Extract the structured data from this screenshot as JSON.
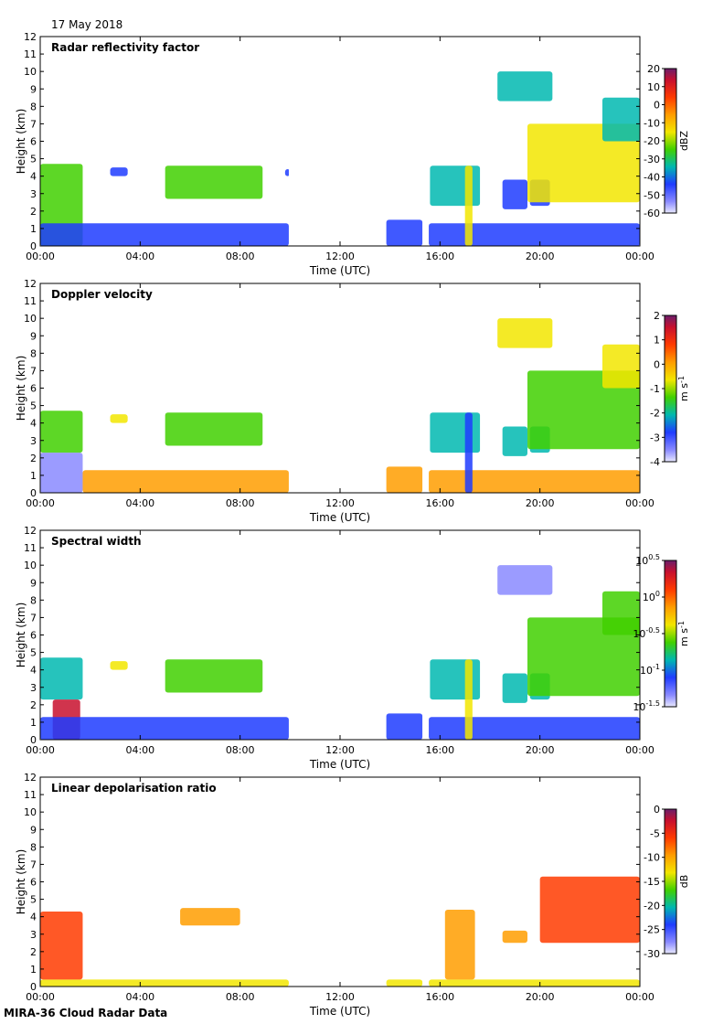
{
  "header": {
    "date": "17 May 2018"
  },
  "footer": {
    "source": "MIRA-36 Cloud Radar Data"
  },
  "chart_data": [
    {
      "type": "heatmap",
      "title": "Radar reflectivity factor",
      "xlabel": "Time (UTC)",
      "ylabel": "Height (km)",
      "x_ticks": [
        "00:00",
        "04:00",
        "08:00",
        "12:00",
        "16:00",
        "20:00",
        "00:00"
      ],
      "y_ticks": [
        "0",
        "1",
        "2",
        "3",
        "4",
        "5",
        "6",
        "7",
        "8",
        "9",
        "10",
        "11",
        "12"
      ],
      "xlim": [
        0,
        24
      ],
      "ylim": [
        0,
        12
      ],
      "colorbar": {
        "unit": "dBZ",
        "ticks": [
          "20",
          "10",
          "0",
          "-10",
          "-20",
          "-30",
          "-40",
          "-50",
          "-60"
        ],
        "range": [
          -60,
          20
        ]
      },
      "data_gaps_utc": [
        [
          9.95,
          13.85
        ],
        [
          15.3,
          15.55
        ]
      ],
      "features": [
        {
          "x0": 0.0,
          "x1": 1.7,
          "y0": 0.0,
          "y1": 4.7,
          "value": -25
        },
        {
          "x0": 0.0,
          "x1": 9.95,
          "y0": 0.0,
          "y1": 1.3,
          "value": -45
        },
        {
          "x0": 2.8,
          "x1": 3.5,
          "y0": 4.0,
          "y1": 4.5,
          "value": -40
        },
        {
          "x0": 5.0,
          "x1": 8.9,
          "y0": 2.7,
          "y1": 4.6,
          "value": -25
        },
        {
          "x0": 9.8,
          "x1": 10.0,
          "y0": 4.0,
          "y1": 4.4,
          "value": -40
        },
        {
          "x0": 13.85,
          "x1": 15.3,
          "y0": 0.0,
          "y1": 1.5,
          "value": -45
        },
        {
          "x0": 15.55,
          "x1": 24.0,
          "y0": 0.0,
          "y1": 1.3,
          "value": -45
        },
        {
          "x0": 15.6,
          "x1": 17.6,
          "y0": 2.3,
          "y1": 4.6,
          "value": -30
        },
        {
          "x0": 17.0,
          "x1": 17.3,
          "y0": 0.0,
          "y1": 4.6,
          "value": -20
        },
        {
          "x0": 18.5,
          "x1": 19.5,
          "y0": 2.1,
          "y1": 3.8,
          "value": -40
        },
        {
          "x0": 19.6,
          "x1": 20.4,
          "y0": 2.3,
          "y1": 3.8,
          "value": -40
        },
        {
          "x0": 19.5,
          "x1": 24.0,
          "y0": 2.5,
          "y1": 7.0,
          "value": -20
        },
        {
          "x0": 18.3,
          "x1": 20.5,
          "y0": 8.3,
          "y1": 10.0,
          "value": -35
        },
        {
          "x0": 22.5,
          "x1": 24.0,
          "y0": 6.0,
          "y1": 8.5,
          "value": -35
        }
      ]
    },
    {
      "type": "heatmap",
      "title": "Doppler velocity",
      "xlabel": "Time (UTC)",
      "ylabel": "Height (km)",
      "x_ticks": [
        "00:00",
        "04:00",
        "08:00",
        "12:00",
        "16:00",
        "20:00",
        "00:00"
      ],
      "y_ticks": [
        "0",
        "1",
        "2",
        "3",
        "4",
        "5",
        "6",
        "7",
        "8",
        "9",
        "10",
        "11",
        "12"
      ],
      "xlim": [
        0,
        24
      ],
      "ylim": [
        0,
        12
      ],
      "colorbar": {
        "unit": "m s-1",
        "ticks": [
          "2",
          "1",
          "0",
          "-1",
          "-2",
          "-3",
          "-4"
        ],
        "range": [
          -4,
          2
        ]
      },
      "data_gaps_utc": [
        [
          9.95,
          13.85
        ],
        [
          15.3,
          15.55
        ]
      ],
      "features": [
        {
          "x0": 0.0,
          "x1": 1.7,
          "y0": 2.3,
          "y1": 4.7,
          "value": -1.2
        },
        {
          "x0": 0.0,
          "x1": 1.7,
          "y0": 0.0,
          "y1": 2.3,
          "value": -3.2
        },
        {
          "x0": 1.7,
          "x1": 9.95,
          "y0": 0.0,
          "y1": 1.3,
          "value": 0.3
        },
        {
          "x0": 2.8,
          "x1": 3.5,
          "y0": 4.0,
          "y1": 4.5,
          "value": -1.0
        },
        {
          "x0": 5.0,
          "x1": 8.9,
          "y0": 2.7,
          "y1": 4.6,
          "value": -1.2
        },
        {
          "x0": 13.85,
          "x1": 15.3,
          "y0": 0.0,
          "y1": 1.5,
          "value": 0.3
        },
        {
          "x0": 15.55,
          "x1": 24.0,
          "y0": 0.0,
          "y1": 1.3,
          "value": 0.3
        },
        {
          "x0": 15.6,
          "x1": 17.6,
          "y0": 2.3,
          "y1": 4.6,
          "value": -2.0
        },
        {
          "x0": 17.0,
          "x1": 17.3,
          "y0": 0.0,
          "y1": 4.6,
          "value": -3.0
        },
        {
          "x0": 18.5,
          "x1": 19.5,
          "y0": 2.1,
          "y1": 3.8,
          "value": -1.8
        },
        {
          "x0": 19.6,
          "x1": 20.4,
          "y0": 2.3,
          "y1": 3.8,
          "value": -1.8
        },
        {
          "x0": 19.5,
          "x1": 24.0,
          "y0": 2.5,
          "y1": 7.0,
          "value": -1.2
        },
        {
          "x0": 18.3,
          "x1": 20.5,
          "y0": 8.3,
          "y1": 10.0,
          "value": -0.8
        },
        {
          "x0": 22.5,
          "x1": 24.0,
          "y0": 6.0,
          "y1": 8.5,
          "value": -1.0
        }
      ]
    },
    {
      "type": "heatmap",
      "title": "Spectral width",
      "xlabel": "Time (UTC)",
      "ylabel": "Height (km)",
      "x_ticks": [
        "00:00",
        "04:00",
        "08:00",
        "12:00",
        "16:00",
        "20:00",
        "00:00"
      ],
      "y_ticks": [
        "0",
        "1",
        "2",
        "3",
        "4",
        "5",
        "6",
        "7",
        "8",
        "9",
        "10",
        "11",
        "12"
      ],
      "xlim": [
        0,
        24
      ],
      "ylim": [
        0,
        12
      ],
      "colorbar": {
        "unit": "m s-1",
        "scale": "log",
        "ticks": [
          "10^0.5",
          "10^0",
          "10^-0.5",
          "10^-1",
          "10^-1.5"
        ],
        "range": [
          -1.5,
          0.5
        ]
      },
      "data_gaps_utc": [
        [
          9.95,
          13.85
        ],
        [
          15.3,
          15.55
        ]
      ],
      "features": [
        {
          "x0": 0.0,
          "x1": 1.7,
          "y0": 2.3,
          "y1": 4.7,
          "value": -0.9
        },
        {
          "x0": 0.5,
          "x1": 1.6,
          "y0": 0.0,
          "y1": 2.3,
          "value": 0.2
        },
        {
          "x0": 0.0,
          "x1": 9.95,
          "y0": 0.0,
          "y1": 1.3,
          "value": -1.1
        },
        {
          "x0": 2.8,
          "x1": 3.5,
          "y0": 4.0,
          "y1": 4.5,
          "value": -0.5
        },
        {
          "x0": 5.0,
          "x1": 8.9,
          "y0": 2.7,
          "y1": 4.6,
          "value": -0.6
        },
        {
          "x0": 13.85,
          "x1": 15.3,
          "y0": 0.0,
          "y1": 1.5,
          "value": -1.1
        },
        {
          "x0": 15.55,
          "x1": 24.0,
          "y0": 0.0,
          "y1": 1.3,
          "value": -1.1
        },
        {
          "x0": 15.6,
          "x1": 17.6,
          "y0": 2.3,
          "y1": 4.6,
          "value": -0.8
        },
        {
          "x0": 17.0,
          "x1": 17.3,
          "y0": 0.0,
          "y1": 4.6,
          "value": -0.3
        },
        {
          "x0": 18.5,
          "x1": 19.5,
          "y0": 2.1,
          "y1": 3.8,
          "value": -0.9
        },
        {
          "x0": 19.6,
          "x1": 20.4,
          "y0": 2.3,
          "y1": 3.8,
          "value": -0.9
        },
        {
          "x0": 19.5,
          "x1": 24.0,
          "y0": 2.5,
          "y1": 7.0,
          "value": -0.6
        },
        {
          "x0": 18.3,
          "x1": 20.5,
          "y0": 8.3,
          "y1": 10.0,
          "value": -1.2
        },
        {
          "x0": 22.5,
          "x1": 24.0,
          "y0": 6.0,
          "y1": 8.5,
          "value": -0.6
        }
      ]
    },
    {
      "type": "heatmap",
      "title": "Linear depolarisation ratio",
      "xlabel": "Time (UTC)",
      "ylabel": "Height (km)",
      "x_ticks": [
        "00:00",
        "04:00",
        "08:00",
        "12:00",
        "16:00",
        "20:00",
        "00:00"
      ],
      "y_ticks": [
        "0",
        "1",
        "2",
        "3",
        "4",
        "5",
        "6",
        "7",
        "8",
        "9",
        "10",
        "11",
        "12"
      ],
      "xlim": [
        0,
        24
      ],
      "ylim": [
        0,
        12
      ],
      "colorbar": {
        "unit": "dB",
        "ticks": [
          "0",
          "-5",
          "-10",
          "-15",
          "-20",
          "-25",
          "-30"
        ],
        "range": [
          -30,
          0
        ]
      },
      "data_gaps_utc": [
        [
          9.95,
          13.85
        ],
        [
          15.3,
          15.55
        ]
      ],
      "features": [
        {
          "x0": 0.0,
          "x1": 9.95,
          "y0": 0.0,
          "y1": 0.4,
          "value": -12
        },
        {
          "x0": 13.85,
          "x1": 15.3,
          "y0": 0.0,
          "y1": 0.4,
          "value": -12
        },
        {
          "x0": 15.55,
          "x1": 24.0,
          "y0": 0.0,
          "y1": 0.4,
          "value": -12
        },
        {
          "x0": 0.0,
          "x1": 1.7,
          "y0": 0.4,
          "y1": 4.3,
          "value": -8
        },
        {
          "x0": 5.6,
          "x1": 8.0,
          "y0": 3.5,
          "y1": 4.5,
          "value": -10
        },
        {
          "x0": 16.2,
          "x1": 17.4,
          "y0": 0.4,
          "y1": 4.4,
          "value": -10
        },
        {
          "x0": 18.5,
          "x1": 19.5,
          "y0": 2.5,
          "y1": 3.2,
          "value": -10
        },
        {
          "x0": 20.0,
          "x1": 24.0,
          "y0": 2.5,
          "y1": 6.3,
          "value": -8
        }
      ]
    }
  ]
}
